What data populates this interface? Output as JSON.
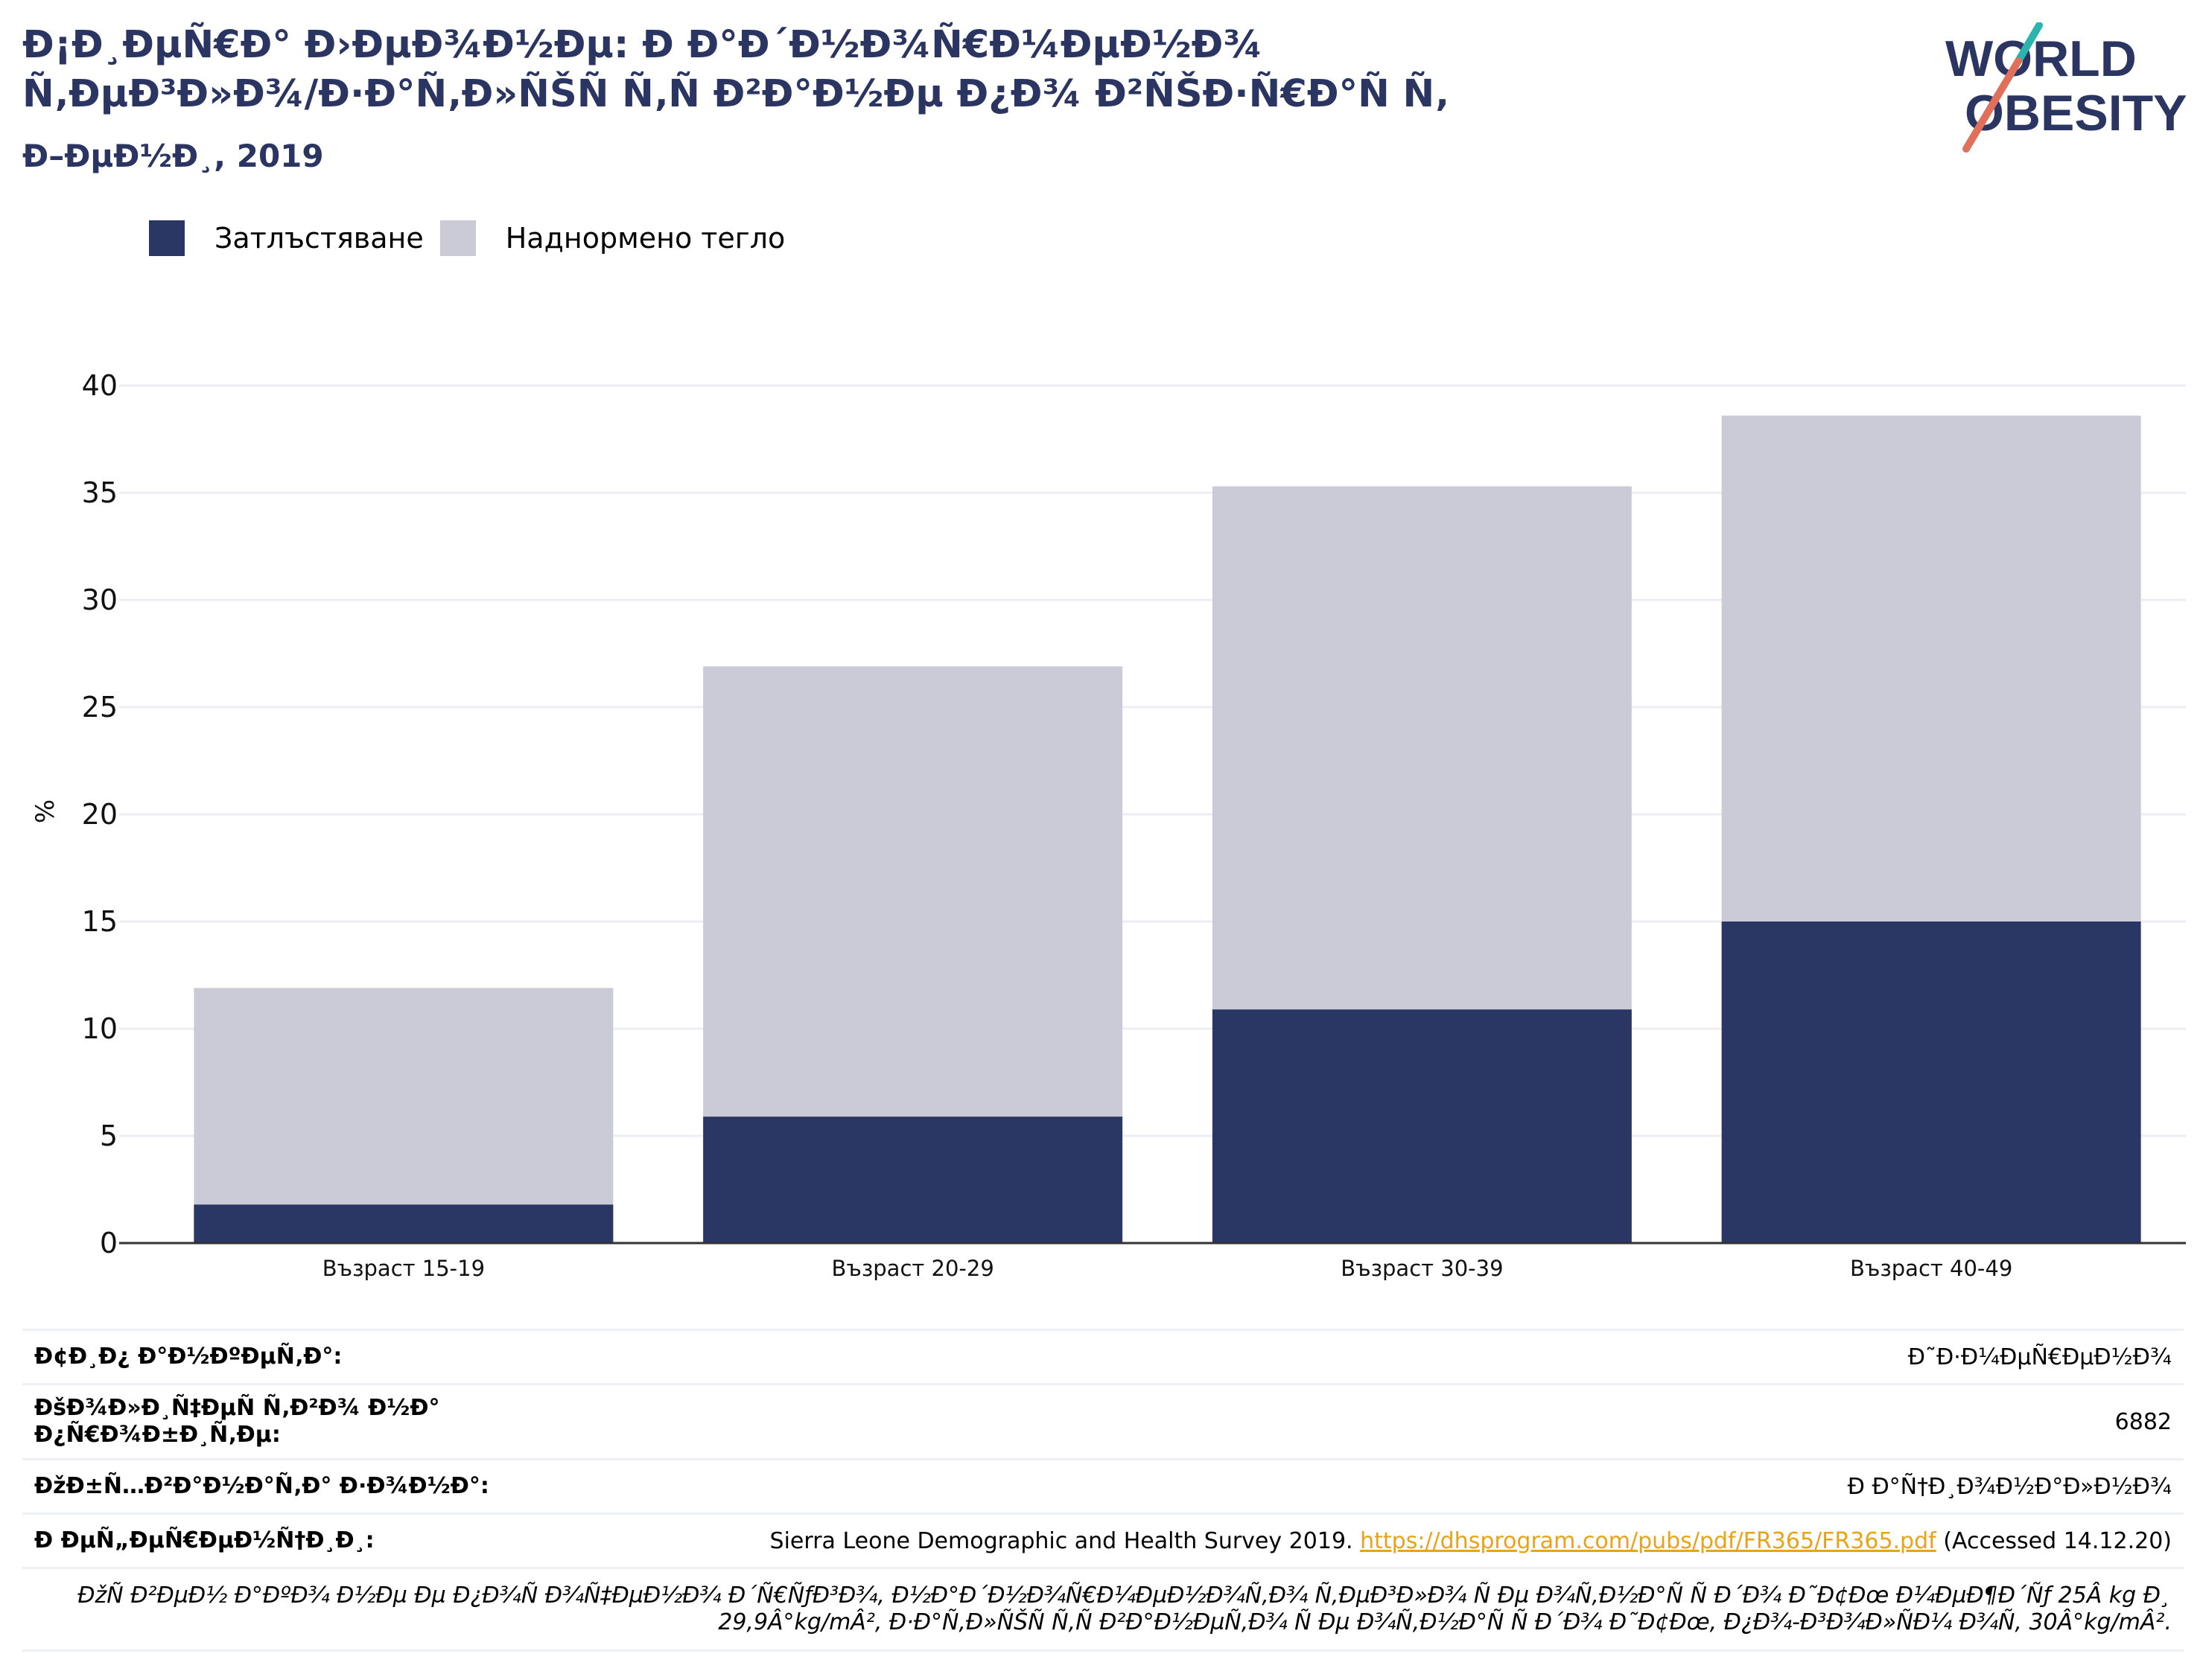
{
  "title": "Đ¡Đ¸ĐµÑ€Đ° Đ›ĐµĐ¾Đ½Đµ: Đ Đ°Đ´Đ½Đ¾Ñ€Đ¼ĐµĐ½Đ¾\nÑ‚ĐµĐ³Đ»Đ¾/Đ·Đ°Ñ‚Đ»ÑŠÑ Ñ‚Ñ Đ²Đ°Đ½Đµ Đ¿Đ¾ Đ²ÑŠĐ·Ñ€Đ°Ñ Ñ‚",
  "subtitle": "Đ–ĐµĐ½Đ¸, 2019",
  "logo": {
    "line1": "WORLD",
    "line2": "OBESITY"
  },
  "legend": [
    {
      "label": "Затлъстяване",
      "color": "#2a3663"
    },
    {
      "label": "Наднормено тегло",
      "color": "#cacbd7"
    }
  ],
  "chart_data": {
    "type": "bar",
    "stacked": true,
    "categories": [
      "Възраст 15-19",
      "Възраст 20-29",
      "Възраст 30-39",
      "Възраст 40-49"
    ],
    "series": [
      {
        "name": "Затлъстяване",
        "values": [
          1.8,
          5.9,
          10.9,
          15.0
        ],
        "color": "#2a3663"
      },
      {
        "name": "Наднормено тегло",
        "values": [
          10.1,
          21.0,
          24.4,
          23.6
        ],
        "color": "#cacbd7"
      }
    ],
    "ylabel": "%",
    "ylim": [
      0,
      40
    ],
    "yticks": [
      0,
      5,
      10,
      15,
      20,
      25,
      30,
      35,
      40
    ],
    "grid": true,
    "legend_position": "top-left"
  },
  "table": [
    {
      "label": "Đ¢Đ¸Đ¿ Đ°Đ½ĐºĐµÑ‚Đ°:",
      "value": "Đ˜Đ·Đ¼ĐµÑ€ĐµĐ½Đ¾"
    },
    {
      "label": "ĐšĐ¾Đ»Đ¸Ñ‡ĐµÑ Ñ‚Đ²Đ¾ Đ½Đ° Đ¿Ñ€Đ¾Đ±Đ¸Ñ‚Đµ:",
      "value": "6882"
    },
    {
      "label": "ĐžĐ±Ñ…Đ²Đ°Đ½Đ°Ñ‚Đ° Đ·Đ¾Đ½Đ°:",
      "value": "Đ Đ°Ñ†Đ¸Đ¾Đ½Đ°Đ»Đ½Đ¾"
    }
  ],
  "reference": {
    "label": "Đ ĐµÑ„ĐµÑ€ĐµĐ½Ñ†Đ¸Đ¸:",
    "text_before": "Sierra Leone Demographic and Health Survey 2019. ",
    "link": "https://dhsprogram.com/pubs/pdf/FR365/FR365.pdf",
    "text_after": " (Accessed 14.12.20)"
  },
  "footnote": "ĐžÑ Đ²ĐµĐ½ Đ°ĐºĐ¾ Đ½Đµ Đµ Đ¿Đ¾Ñ Đ¾Ñ‡ĐµĐ½Đ¾ Đ´Ñ€ÑƒĐ³Đ¾, Đ½Đ°Đ´Đ½Đ¾Ñ€Đ¼ĐµĐ½Đ¾Ñ‚Đ¾ Ñ‚ĐµĐ³Đ»Đ¾ Ñ Đµ Đ¾Ñ‚Đ½Đ°Ñ Ñ  Đ´Đ¾ Đ˜Đ¢Đœ Đ¼ĐµĐ¶Đ´Ñƒ 25Â kg Đ¸ 29,9Â°kg/mÂ², Đ·Đ°Ñ‚Đ»ÑŠÑ Ñ‚Ñ Đ²Đ°Đ½ĐµÑ‚Đ¾ Ñ Đµ Đ¾Ñ‚Đ½Đ°Ñ Ñ  Đ´Đ¾ Đ˜Đ¢Đœ, Đ¿Đ¾-Đ³Đ¾Đ»ÑĐ¼ Đ¾Ñ‚ 30Â°kg/mÂ²."
}
